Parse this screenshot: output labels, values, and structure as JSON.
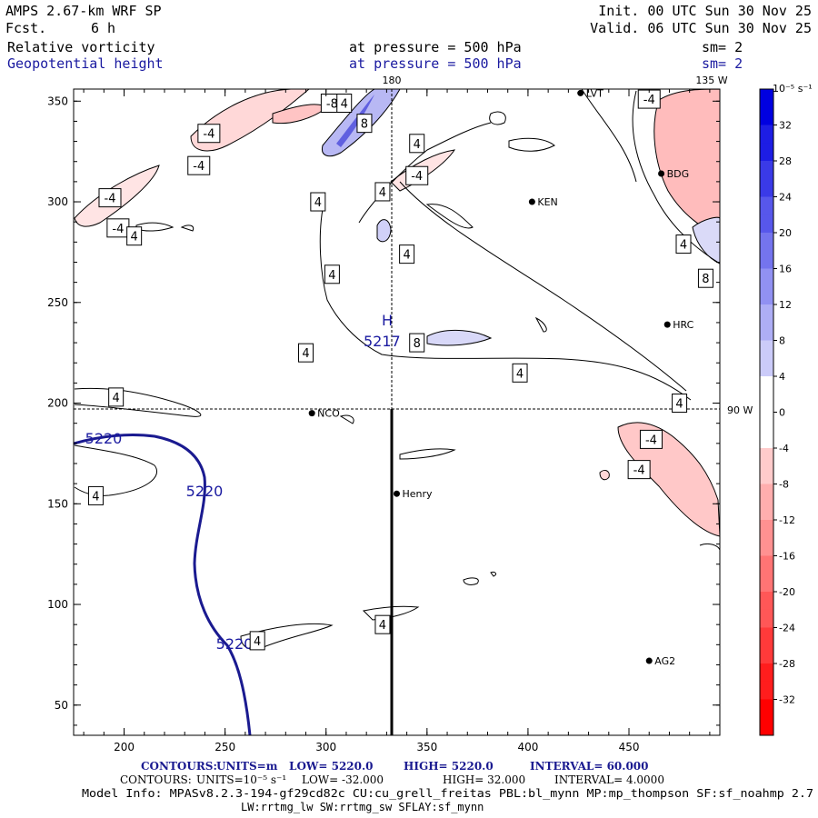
{
  "header": {
    "model": "AMPS 2.67-km WRF SP",
    "fcst_label": "Fcst.",
    "fcst_value": "6 h",
    "init": "Init. 00 UTC Sun 30 Nov 25",
    "valid": "Valid. 06 UTC Sun 30 Nov 25",
    "field1": "Relative vorticity",
    "field2": "Geopotential height",
    "pressure1": "at pressure =  500 hPa",
    "pressure2": "at pressure =  500 hPa",
    "sm1": "sm= 2",
    "sm2": "sm= 2"
  },
  "map_labels": {
    "lon180": "180",
    "lon135": "135 W",
    "lon90": "90 W",
    "high_h": "H",
    "high_value": "5217"
  },
  "stations": [
    {
      "name": "NCO",
      "x": 293,
      "y": 195
    },
    {
      "name": "Henry",
      "x": 335,
      "y": 155
    },
    {
      "name": "KEN",
      "x": 402,
      "y": 300
    },
    {
      "name": "BDG",
      "x": 466,
      "y": 314
    },
    {
      "name": "HRC",
      "x": 469,
      "y": 239
    },
    {
      "name": "AG2",
      "x": 460,
      "y": 72
    },
    {
      "name": "LVT",
      "x": 426,
      "y": 354
    }
  ],
  "chart_data": {
    "type": "heatmap",
    "x_ticks": [
      200,
      250,
      300,
      350,
      400,
      450
    ],
    "y_ticks": [
      50,
      100,
      150,
      200,
      250,
      300,
      350
    ],
    "xlim": [
      175,
      495
    ],
    "ylim": [
      35,
      356
    ],
    "colorbar": {
      "unit": "10⁻⁵ s⁻¹",
      "ticks": [
        32,
        28,
        24,
        20,
        16,
        12,
        8,
        4,
        0,
        -4,
        -8,
        -12,
        -16,
        -20,
        -24,
        -28,
        -32
      ],
      "positive_color": "#0000e0",
      "negative_color": "#ff0000"
    },
    "vorticity_contour_labels": [
      {
        "text": "-4",
        "x": 242,
        "y": 334
      },
      {
        "text": "-4",
        "x": 237,
        "y": 318
      },
      {
        "text": "-8",
        "x": 303,
        "y": 349
      },
      {
        "text": "4",
        "x": 309,
        "y": 349
      },
      {
        "text": "8",
        "x": 319,
        "y": 339
      },
      {
        "text": "-4",
        "x": 193,
        "y": 302
      },
      {
        "text": "-4",
        "x": 197,
        "y": 287
      },
      {
        "text": "4",
        "x": 205,
        "y": 283
      },
      {
        "text": "4",
        "x": 296,
        "y": 300
      },
      {
        "text": "4",
        "x": 328,
        "y": 305
      },
      {
        "text": "4",
        "x": 345,
        "y": 329
      },
      {
        "text": "-4",
        "x": 345,
        "y": 313
      },
      {
        "text": "4",
        "x": 340,
        "y": 274
      },
      {
        "text": "4",
        "x": 303,
        "y": 264
      },
      {
        "text": "8",
        "x": 345,
        "y": 230
      },
      {
        "text": "4",
        "x": 290,
        "y": 225
      },
      {
        "text": "4",
        "x": 196,
        "y": 203
      },
      {
        "text": "4",
        "x": 396,
        "y": 215
      },
      {
        "text": "-4",
        "x": 460,
        "y": 351
      },
      {
        "text": "4",
        "x": 477,
        "y": 279
      },
      {
        "text": "8",
        "x": 488,
        "y": 262
      },
      {
        "text": "4",
        "x": 475,
        "y": 200
      },
      {
        "text": "-4",
        "x": 461,
        "y": 182
      },
      {
        "text": "-4",
        "x": 455,
        "y": 167
      },
      {
        "text": "4",
        "x": 186,
        "y": 154
      },
      {
        "text": "4",
        "x": 266,
        "y": 82
      },
      {
        "text": "4",
        "x": 328,
        "y": 90
      }
    ],
    "height_contour": {
      "value": 5220,
      "labels": [
        "5220",
        "5220",
        "5220"
      ]
    },
    "high_center": {
      "label": "H",
      "value": 5217
    }
  },
  "footer": {
    "contours1_label": "CONTOURS:",
    "contours1_units": "UNITS=m",
    "contours1_low": "LOW=   5220.0",
    "contours1_high": "HIGH=   5220.0",
    "contours1_interval": "INTERVAL=   60.000",
    "contours2_label": "CONTOURS:",
    "contours2_units": "UNITS=10⁻⁵ s⁻¹",
    "contours2_low": "LOW= -32.000",
    "contours2_high": "HIGH=  32.000",
    "contours2_interval": "INTERVAL=   4.0000",
    "model_info": "Model Info: MPASv8.2.3-194-gf29cd82c CU:cu_grell_freitas PBL:bl_mynn MP:mp_thompson SF:sf_noahmp 2.7",
    "model_info2": "LW:rrtmg_lw SW:rrtmg_sw SFLAY:sf_mynn"
  }
}
